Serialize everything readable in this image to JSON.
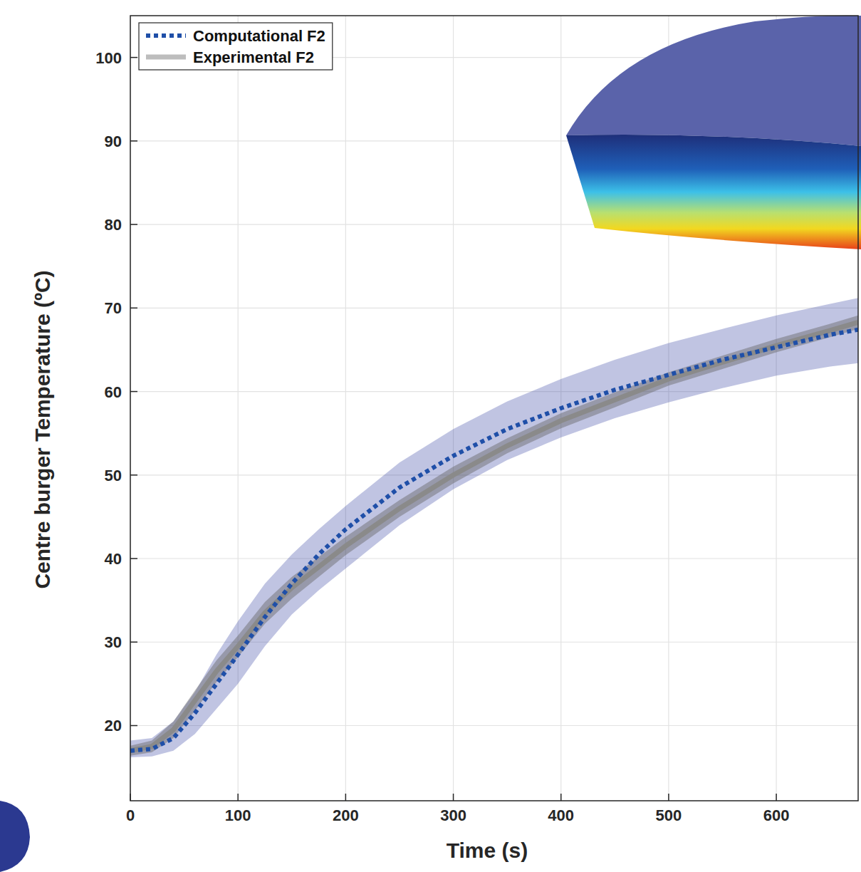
{
  "chart_data": {
    "type": "line",
    "x_label": "Time (s)",
    "y_label": "Centre burger Temperature (ºC)",
    "x": [
      0,
      20,
      40,
      60,
      80,
      100,
      125,
      150,
      175,
      200,
      250,
      300,
      350,
      400,
      450,
      500,
      550,
      600,
      650,
      676
    ],
    "xlim": [
      0,
      676
    ],
    "xticks": [
      0,
      100,
      200,
      300,
      400,
      500,
      600
    ],
    "ylim": [
      11,
      105
    ],
    "yticks": [
      20,
      30,
      40,
      50,
      60,
      70,
      80,
      90,
      100
    ],
    "grid": true,
    "legend": "upper left",
    "series": [
      {
        "name": "Computational F2",
        "color": "#1f4fa8",
        "line_style": "dotted",
        "values": [
          17,
          17.2,
          18.5,
          21.5,
          25,
          28.5,
          33,
          37,
          40.5,
          43.5,
          48.5,
          52.3,
          55.5,
          58,
          60.2,
          62,
          63.8,
          65.3,
          66.8,
          67.4
        ],
        "upper": [
          18.2,
          18.5,
          20.5,
          24,
          28.5,
          32.5,
          37,
          40.5,
          43.5,
          46.3,
          51.5,
          55.5,
          58.8,
          61.5,
          63.8,
          65.8,
          67.5,
          69.1,
          70.5,
          71.2
        ],
        "lower": [
          16.2,
          16.3,
          17,
          19,
          22,
          25,
          29.5,
          33.3,
          36.2,
          38.8,
          44,
          48.3,
          51.8,
          54.5,
          56.8,
          58.7,
          60.4,
          61.9,
          63,
          63.4
        ]
      },
      {
        "name": "Experimental F2",
        "color": "#a6a6a6",
        "line_style": "solid",
        "values": [
          17,
          17.5,
          19.5,
          23,
          26.5,
          29.5,
          33.5,
          36.5,
          39,
          41.5,
          46,
          50,
          53.5,
          56.5,
          59,
          61.5,
          63.5,
          65.5,
          67.3,
          68.3
        ],
        "upper": [
          17.6,
          18.2,
          20.5,
          24.2,
          27.8,
          30.8,
          34.8,
          37.8,
          40.2,
          42.6,
          47,
          51,
          54.4,
          57.4,
          59.9,
          62.3,
          64.3,
          66.3,
          68.1,
          69.1
        ],
        "lower": [
          16.4,
          16.8,
          18.5,
          21.8,
          25.2,
          28.2,
          32.2,
          35.2,
          37.8,
          40.4,
          45,
          49,
          52.6,
          55.6,
          58.1,
          60.7,
          62.7,
          64.7,
          66.5,
          67.5
        ]
      }
    ]
  }
}
